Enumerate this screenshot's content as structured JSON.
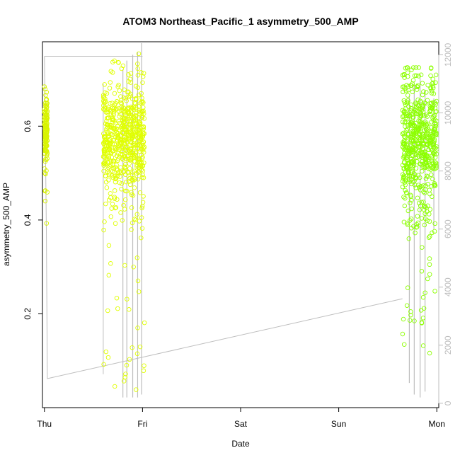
{
  "chart_data": {
    "type": "scatter",
    "title": "ATOM3 Northeast_Pacific_1 asymmetry_500_AMP",
    "xlabel": "Date",
    "ylabel": "asymmetry_500_AMP",
    "x_axis": {
      "range_days": [
        -0.02,
        4.02
      ],
      "ticks": [
        {
          "label": "Thu",
          "value": 0
        },
        {
          "label": "Fri",
          "value": 1
        },
        {
          "label": "Sat",
          "value": 2
        },
        {
          "label": "Sun",
          "value": 3
        },
        {
          "label": "Mon",
          "value": 4
        }
      ]
    },
    "y_axis_left": {
      "range": [
        0.0,
        0.78
      ],
      "ticks": [
        {
          "label": "0.2",
          "value": 0.2
        },
        {
          "label": "0.4",
          "value": 0.4
        },
        {
          "label": "0.6",
          "value": 0.6
        }
      ]
    },
    "y_axis_right": {
      "range": [
        -150,
        12450
      ],
      "color": "#bebebe",
      "ticks": [
        {
          "label": "0",
          "value": 0
        },
        {
          "label": "2000",
          "value": 2000
        },
        {
          "label": "4000",
          "value": 4000
        },
        {
          "label": "6000",
          "value": 6000
        },
        {
          "label": "8000",
          "value": 8000
        },
        {
          "label": "10000",
          "value": 10000
        },
        {
          "label": "12000",
          "value": 12000
        }
      ]
    },
    "grid": false,
    "scatter_series": {
      "marker": "open-circle",
      "clusters": [
        {
          "day_start": 0.0,
          "day_end": 0.03,
          "y_center": 0.59,
          "y_spread": 0.035,
          "y_min": 0.385,
          "y_max": 0.69,
          "count": 150,
          "color": "#d8f400"
        },
        {
          "day_start": 0.6,
          "day_end": 1.02,
          "y_center": 0.57,
          "y_spread": 0.06,
          "y_min": 0.03,
          "y_max": 0.765,
          "count": 650,
          "color": "#e0ff00"
        },
        {
          "day_start": 3.65,
          "day_end": 4.0,
          "y_center": 0.57,
          "y_spread": 0.07,
          "y_min": 0.105,
          "y_max": 0.725,
          "count": 600,
          "color": "#8cff00"
        }
      ]
    },
    "line_series": {
      "color": "#bebebe",
      "segments": [
        {
          "points": [
            [
              0.0,
              11950
            ],
            [
              0.02,
              11950
            ],
            [
              1.0,
              11950
            ]
          ]
        },
        {
          "points": [
            [
              0.0,
              11950
            ],
            [
              0.02,
              6000
            ],
            [
              0.03,
              850
            ],
            [
              3.65,
              3600
            ]
          ]
        },
        {
          "points": [
            [
              0.6,
              1000
            ],
            [
              0.6,
              11000
            ]
          ]
        }
      ],
      "spikes": [
        {
          "day": 0.8,
          "y_low": 200,
          "y_high": 11500
        },
        {
          "day": 0.84,
          "y_low": 200,
          "y_high": 11800
        },
        {
          "day": 0.9,
          "y_low": 200,
          "y_high": 12000
        },
        {
          "day": 0.95,
          "y_low": 200,
          "y_high": 12100
        },
        {
          "day": 0.99,
          "y_low": 300,
          "y_high": 12400
        },
        {
          "day": 3.72,
          "y_low": 700,
          "y_high": 10600
        },
        {
          "day": 3.77,
          "y_low": 300,
          "y_high": 11000
        },
        {
          "day": 3.83,
          "y_low": 200,
          "y_high": 11200
        },
        {
          "day": 3.88,
          "y_low": 400,
          "y_high": 10800
        },
        {
          "day": 3.97,
          "y_low": 6000,
          "y_high": 10500
        }
      ]
    }
  }
}
